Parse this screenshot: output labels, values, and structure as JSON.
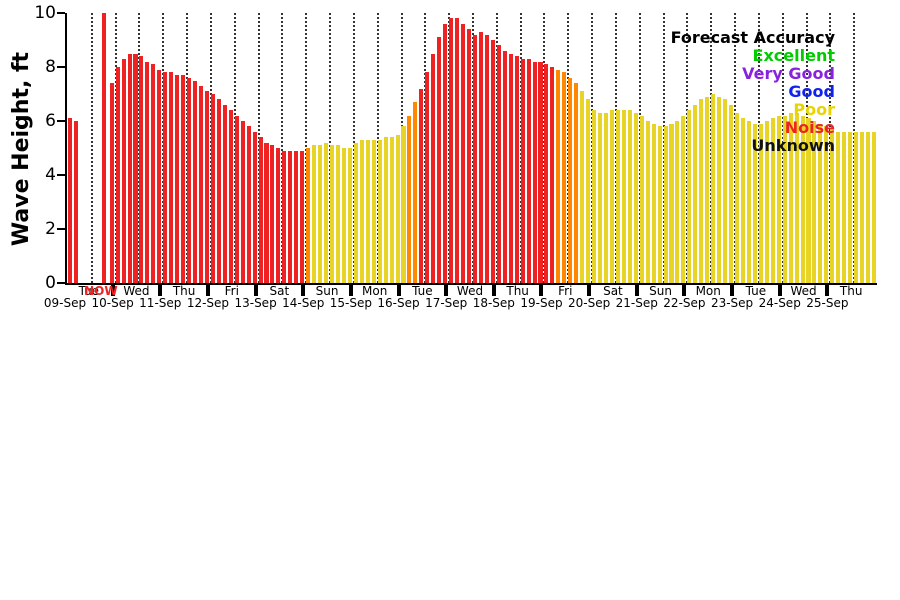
{
  "chart_data": {
    "type": "bar",
    "title": "",
    "ylabel": "Wave Height, ft",
    "ylim": [
      0,
      10
    ],
    "yticks": [
      0,
      2,
      4,
      6,
      8,
      10
    ],
    "grid": "dotted vertical lines every 12 hours",
    "bars_per_day": 8,
    "days": [
      {
        "weekday": "Tue",
        "date": "09-Sep"
      },
      {
        "weekday": "Wed",
        "date": "10-Sep"
      },
      {
        "weekday": "Thu",
        "date": "11-Sep"
      },
      {
        "weekday": "Fri",
        "date": "12-Sep"
      },
      {
        "weekday": "Sat",
        "date": "13-Sep"
      },
      {
        "weekday": "Sun",
        "date": "14-Sep"
      },
      {
        "weekday": "Mon",
        "date": "15-Sep"
      },
      {
        "weekday": "Tue",
        "date": "16-Sep"
      },
      {
        "weekday": "Wed",
        "date": "17-Sep"
      },
      {
        "weekday": "Thu",
        "date": "18-Sep"
      },
      {
        "weekday": "Fri",
        "date": "19-Sep"
      },
      {
        "weekday": "Sat",
        "date": "20-Sep"
      },
      {
        "weekday": "Sun",
        "date": "21-Sep"
      },
      {
        "weekday": "Mon",
        "date": "22-Sep"
      },
      {
        "weekday": "Tue",
        "date": "23-Sep"
      },
      {
        "weekday": "Wed",
        "date": "24-Sep"
      },
      {
        "weekday": "Thu",
        "date": "25-Sep"
      }
    ],
    "series": [
      {
        "name": "wave-height-ft",
        "values": [
          6.1,
          6.0,
          0,
          0,
          0,
          0,
          0,
          7.4,
          8.0,
          8.3,
          8.5,
          8.5,
          8.4,
          8.2,
          8.1,
          7.9,
          7.8,
          7.8,
          7.7,
          7.7,
          7.6,
          7.5,
          7.3,
          7.1,
          7.0,
          6.8,
          6.6,
          6.4,
          6.2,
          6.0,
          5.8,
          5.6,
          5.4,
          5.2,
          5.1,
          5.0,
          4.9,
          4.9,
          4.9,
          4.9,
          5.0,
          5.1,
          5.1,
          5.2,
          5.1,
          5.1,
          5.0,
          5.0,
          5.2,
          5.3,
          5.3,
          5.3,
          5.3,
          5.4,
          5.4,
          5.5,
          5.8,
          6.2,
          6.7,
          7.2,
          7.8,
          8.5,
          9.1,
          9.6,
          9.8,
          9.8,
          9.6,
          9.4,
          9.2,
          9.3,
          9.2,
          9.0,
          8.8,
          8.6,
          8.5,
          8.4,
          8.3,
          8.3,
          8.2,
          8.2,
          8.1,
          8.0,
          7.9,
          7.8,
          7.6,
          7.4,
          7.1,
          6.8,
          6.4,
          6.3,
          6.3,
          6.4,
          6.4,
          6.4,
          6.4,
          6.3,
          6.2,
          6.0,
          5.9,
          5.8,
          5.8,
          5.9,
          6.0,
          6.2,
          6.4,
          6.6,
          6.8,
          6.9,
          7.0,
          6.9,
          6.8,
          6.6,
          6.3,
          6.1,
          6.0,
          5.9,
          5.9,
          6.0,
          6.1,
          6.2,
          6.2,
          6.3,
          6.3,
          6.2,
          6.1,
          6.0,
          5.9,
          5.8,
          5.7,
          5.6,
          5.6,
          5.6,
          5.6,
          5.6,
          5.6,
          5.6
        ]
      }
    ],
    "accuracy": [
      "NNNNNNNN",
      "NNNNNNNN",
      "NNNNNNNN",
      "NNNNNNNN",
      "NNNNNNNN",
      "TPPPPPPP",
      "PPPPPPPP",
      "PTTNNNNN",
      "NNNNNNNN",
      "NNNNNNNN",
      "NNTTTTPP",
      "PPPPPPPP",
      "PPPPPPPP",
      "PPPPPPPP",
      "PPPPPPPP",
      "PPPPPPPP",
      "PPPPPPPP"
    ],
    "palette": {
      "N": "#ee2222",
      "T": "#ff8800",
      "P": "#e8d426"
    },
    "now": {
      "label": "NOW",
      "slot": 5.9,
      "color": "#ee2222"
    },
    "legend": {
      "title": "Forecast Accuracy",
      "entries": [
        {
          "label": "Excellent",
          "color": "#00cc00"
        },
        {
          "label": "Very Good",
          "color": "#8822dd"
        },
        {
          "label": "Good",
          "color": "#1122ee"
        },
        {
          "label": "Poor",
          "color": "#e8d400"
        },
        {
          "label": "Noise",
          "color": "#ee2222"
        },
        {
          "label": "Unknown",
          "color": "#111111"
        }
      ]
    }
  }
}
